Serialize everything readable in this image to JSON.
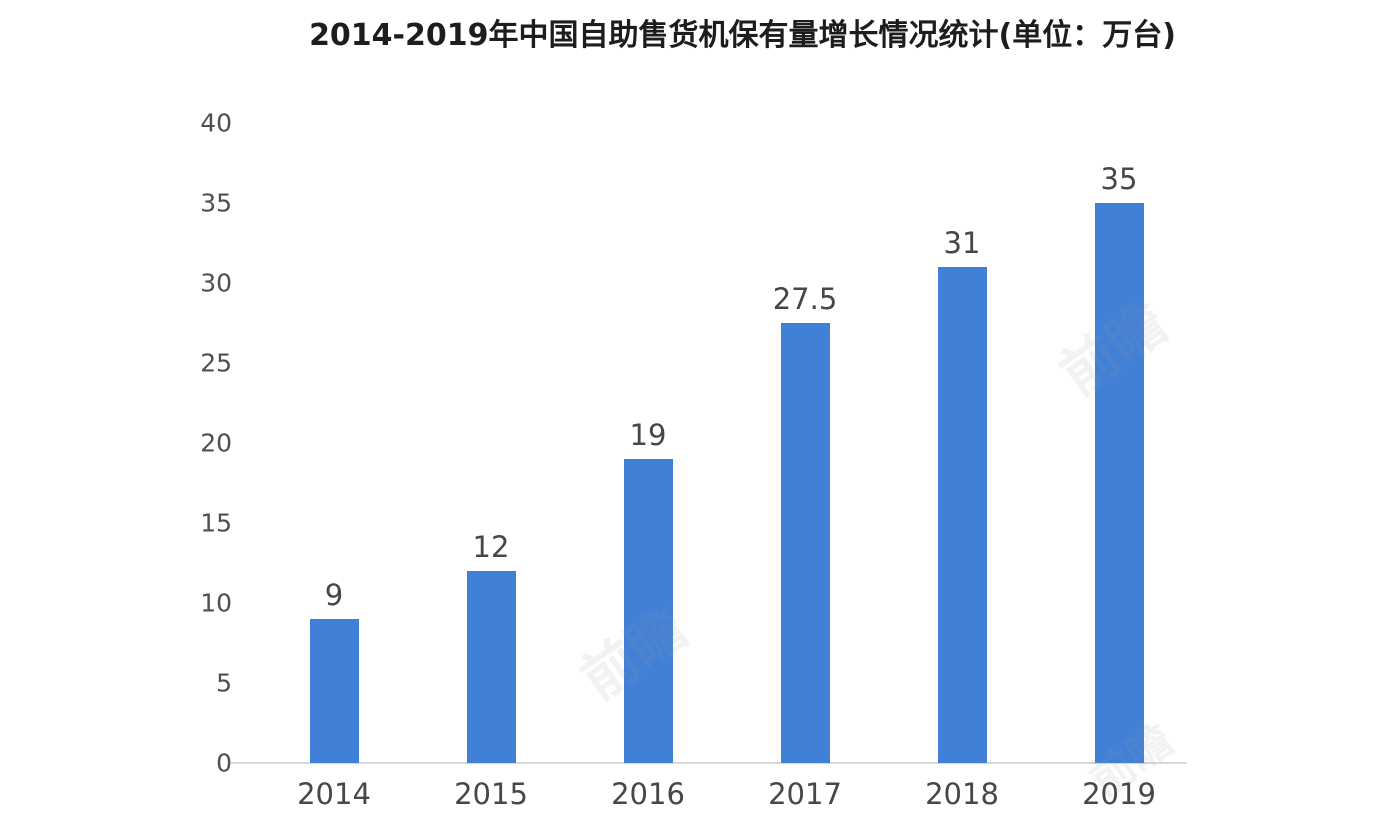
{
  "chart_data": {
    "type": "bar",
    "title": "2014-2019年中国自助售货机保有量增长情况统计(单位：万台)",
    "categories": [
      "2014",
      "2015",
      "2016",
      "2017",
      "2018",
      "2019"
    ],
    "values": [
      9,
      12,
      19,
      27.5,
      31,
      35
    ],
    "value_labels": [
      "9",
      "12",
      "19",
      "27.5",
      "31",
      "35"
    ],
    "xlabel": "",
    "ylabel": "",
    "ylim": [
      0,
      40
    ],
    "y_ticks": [
      0,
      5,
      10,
      15,
      20,
      25,
      30,
      35,
      40
    ],
    "grid": false,
    "legend_position": "none",
    "bar_color": "#4180d7",
    "axis_line_color": "#d8d8d8",
    "tick_color": "#4f4f4f",
    "label_color": "#474747",
    "title_color": "#1d1d1d",
    "background_color": "#ffffff"
  },
  "watermark": {
    "text": "前瞻"
  }
}
